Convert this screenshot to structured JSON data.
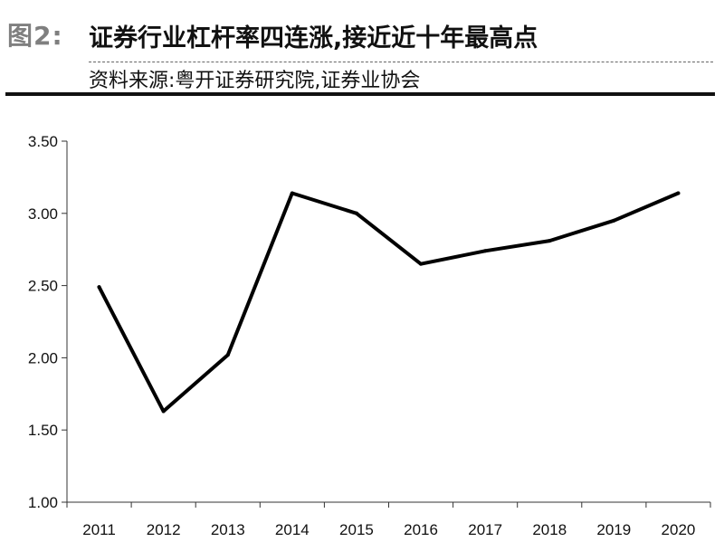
{
  "header": {
    "figure_label": "图2:",
    "title": "证券行业杠杆率四连涨,接近近十年最高点",
    "source": "资料来源:粤开证券研究院,证券业协会"
  },
  "chart_data": {
    "type": "line",
    "title": "证券行业杠杆率四连涨,接近近十年最高点",
    "xlabel": "",
    "ylabel": "",
    "categories": [
      "2011",
      "2012",
      "2013",
      "2014",
      "2015",
      "2016",
      "2017",
      "2018",
      "2019",
      "2020"
    ],
    "series": [
      {
        "values": [
          2.49,
          1.63,
          2.02,
          3.14,
          3.0,
          2.65,
          2.74,
          2.81,
          2.95,
          3.14
        ],
        "color": "#000000"
      }
    ],
    "ylim": [
      1.0,
      3.5
    ],
    "yticks": [
      "1.00",
      "1.50",
      "2.00",
      "2.50",
      "3.00",
      "3.50"
    ],
    "grid": false,
    "legend": "none"
  }
}
